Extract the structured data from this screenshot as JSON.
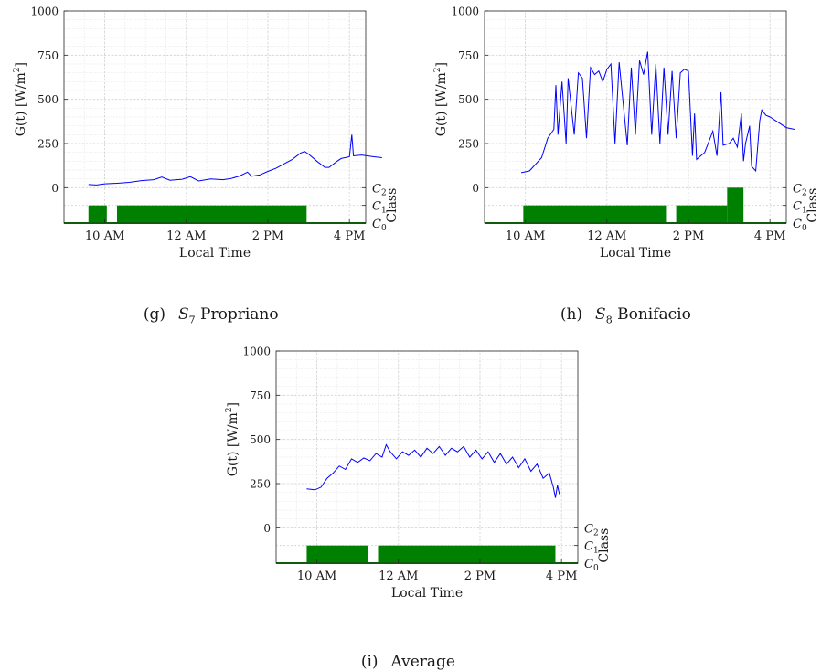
{
  "charts": [
    {
      "id": "g",
      "caption": {
        "label": "(g)",
        "station": "S",
        "station_sub": "7",
        "name": "Propriano"
      },
      "chart_data": {
        "type": "line",
        "xlabel": "Local Time",
        "ylabel": "G(t) [W/m",
        "ylabel_sup": "2",
        "ylabel_end": "]",
        "right_label": "Class",
        "xticks": [
          {
            "value": 10,
            "label": "10 AM"
          },
          {
            "value": 12,
            "label": "12 AM"
          },
          {
            "value": 14,
            "label": "2 PM"
          },
          {
            "value": 16,
            "label": "4 PM"
          }
        ],
        "yticks": [
          0,
          250,
          500,
          750,
          1000
        ],
        "class_ticks": [
          "C0",
          "C1",
          "C2"
        ],
        "xlim": [
          9,
          16.4
        ],
        "ylim": [
          -200,
          1000
        ],
        "series": [
          {
            "color": "#0000ff",
            "points": [
              [
                9.6,
                18
              ],
              [
                9.8,
                15
              ],
              [
                10.0,
                22
              ],
              [
                10.3,
                25
              ],
              [
                10.6,
                30
              ],
              [
                10.9,
                40
              ],
              [
                11.2,
                45
              ],
              [
                11.4,
                60
              ],
              [
                11.6,
                42
              ],
              [
                11.9,
                48
              ],
              [
                12.1,
                62
              ],
              [
                12.3,
                38
              ],
              [
                12.6,
                50
              ],
              [
                12.9,
                45
              ],
              [
                13.1,
                52
              ],
              [
                13.3,
                66
              ],
              [
                13.5,
                88
              ],
              [
                13.6,
                65
              ],
              [
                13.8,
                72
              ],
              [
                14.0,
                92
              ],
              [
                14.2,
                110
              ],
              [
                14.4,
                135
              ],
              [
                14.6,
                160
              ],
              [
                14.8,
                195
              ],
              [
                14.9,
                205
              ],
              [
                15.0,
                190
              ],
              [
                15.2,
                150
              ],
              [
                15.4,
                115
              ],
              [
                15.5,
                115
              ],
              [
                15.7,
                150
              ],
              [
                15.8,
                165
              ],
              [
                16.0,
                175
              ],
              [
                16.06,
                300
              ],
              [
                16.1,
                180
              ],
              [
                16.3,
                185
              ],
              [
                16.6,
                175
              ],
              [
                16.8,
                170
              ]
            ]
          }
        ],
        "class_segments": [
          {
            "start": 9.6,
            "end": 10.05,
            "class": 1
          },
          {
            "start": 10.3,
            "end": 14.95,
            "class": 1
          }
        ]
      }
    },
    {
      "id": "h",
      "caption": {
        "label": "(h)",
        "station": "S",
        "station_sub": "8",
        "name": "Bonifacio"
      },
      "chart_data": {
        "type": "line",
        "xlabel": "Local Time",
        "ylabel": "G(t) [W/m",
        "ylabel_sup": "2",
        "ylabel_end": "]",
        "right_label": "Class",
        "xticks": [
          {
            "value": 10,
            "label": "10 AM"
          },
          {
            "value": 12,
            "label": "12 AM"
          },
          {
            "value": 14,
            "label": "2 PM"
          },
          {
            "value": 16,
            "label": "4 PM"
          }
        ],
        "yticks": [
          0,
          250,
          500,
          750,
          1000
        ],
        "class_ticks": [
          "C0",
          "C1",
          "C2"
        ],
        "xlim": [
          9,
          16.4
        ],
        "ylim": [
          -200,
          1000
        ],
        "series": [
          {
            "color": "#0000ff",
            "points": [
              [
                9.9,
                85
              ],
              [
                10.1,
                95
              ],
              [
                10.4,
                170
              ],
              [
                10.55,
                280
              ],
              [
                10.7,
                330
              ],
              [
                10.75,
                580
              ],
              [
                10.8,
                300
              ],
              [
                10.9,
                600
              ],
              [
                11.0,
                250
              ],
              [
                11.05,
                620
              ],
              [
                11.2,
                300
              ],
              [
                11.3,
                650
              ],
              [
                11.4,
                620
              ],
              [
                11.5,
                280
              ],
              [
                11.6,
                680
              ],
              [
                11.7,
                640
              ],
              [
                11.8,
                660
              ],
              [
                11.9,
                600
              ],
              [
                12.0,
                670
              ],
              [
                12.1,
                700
              ],
              [
                12.2,
                250
              ],
              [
                12.3,
                710
              ],
              [
                12.5,
                240
              ],
              [
                12.6,
                680
              ],
              [
                12.7,
                300
              ],
              [
                12.8,
                720
              ],
              [
                12.9,
                640
              ],
              [
                13.0,
                770
              ],
              [
                13.1,
                300
              ],
              [
                13.2,
                700
              ],
              [
                13.3,
                250
              ],
              [
                13.4,
                680
              ],
              [
                13.5,
                300
              ],
              [
                13.6,
                660
              ],
              [
                13.7,
                280
              ],
              [
                13.8,
                650
              ],
              [
                13.9,
                670
              ],
              [
                14.0,
                660
              ],
              [
                14.1,
                180
              ],
              [
                14.15,
                420
              ],
              [
                14.2,
                160
              ],
              [
                14.4,
                200
              ],
              [
                14.6,
                320
              ],
              [
                14.7,
                180
              ],
              [
                14.8,
                540
              ],
              [
                14.85,
                240
              ],
              [
                15.0,
                250
              ],
              [
                15.1,
                280
              ],
              [
                15.2,
                230
              ],
              [
                15.3,
                420
              ],
              [
                15.35,
                150
              ],
              [
                15.4,
                250
              ],
              [
                15.5,
                350
              ],
              [
                15.55,
                120
              ],
              [
                15.65,
                95
              ],
              [
                15.75,
                380
              ],
              [
                15.8,
                440
              ],
              [
                15.9,
                410
              ],
              [
                16.0,
                400
              ],
              [
                16.2,
                370
              ],
              [
                16.4,
                340
              ],
              [
                16.6,
                330
              ]
            ]
          }
        ],
        "class_segments": [
          {
            "start": 9.95,
            "end": 13.45,
            "class": 1
          },
          {
            "start": 13.7,
            "end": 14.95,
            "class": 1
          },
          {
            "start": 14.95,
            "end": 15.35,
            "class": 2
          }
        ]
      }
    },
    {
      "id": "i",
      "caption": {
        "label": "(i)",
        "station": "",
        "station_sub": "",
        "name": "Average"
      },
      "chart_data": {
        "type": "line",
        "xlabel": "Local Time",
        "ylabel": "G(t) [W/m",
        "ylabel_sup": "2",
        "ylabel_end": "]",
        "right_label": "Class",
        "xticks": [
          {
            "value": 10,
            "label": "10 AM"
          },
          {
            "value": 12,
            "label": "12 AM"
          },
          {
            "value": 14,
            "label": "2 PM"
          },
          {
            "value": 16,
            "label": "4 PM"
          }
        ],
        "yticks": [
          0,
          250,
          500,
          750,
          1000
        ],
        "class_ticks": [
          "C0",
          "C1",
          "C2"
        ],
        "xlim": [
          9,
          16.4
        ],
        "ylim": [
          -200,
          1000
        ],
        "series": [
          {
            "color": "#0000ff",
            "points": [
              [
                9.75,
                220
              ],
              [
                9.95,
                215
              ],
              [
                10.1,
                230
              ],
              [
                10.25,
                280
              ],
              [
                10.4,
                310
              ],
              [
                10.55,
                350
              ],
              [
                10.7,
                330
              ],
              [
                10.85,
                390
              ],
              [
                11.0,
                370
              ],
              [
                11.15,
                395
              ],
              [
                11.3,
                380
              ],
              [
                11.45,
                420
              ],
              [
                11.6,
                400
              ],
              [
                11.7,
                470
              ],
              [
                11.8,
                430
              ],
              [
                11.95,
                390
              ],
              [
                12.1,
                430
              ],
              [
                12.25,
                410
              ],
              [
                12.4,
                440
              ],
              [
                12.55,
                400
              ],
              [
                12.7,
                450
              ],
              [
                12.85,
                420
              ],
              [
                13.0,
                460
              ],
              [
                13.15,
                410
              ],
              [
                13.3,
                450
              ],
              [
                13.45,
                430
              ],
              [
                13.6,
                460
              ],
              [
                13.75,
                400
              ],
              [
                13.9,
                440
              ],
              [
                14.05,
                390
              ],
              [
                14.2,
                430
              ],
              [
                14.35,
                370
              ],
              [
                14.5,
                420
              ],
              [
                14.65,
                360
              ],
              [
                14.8,
                400
              ],
              [
                14.95,
                340
              ],
              [
                15.1,
                390
              ],
              [
                15.25,
                320
              ],
              [
                15.4,
                360
              ],
              [
                15.55,
                280
              ],
              [
                15.7,
                310
              ],
              [
                15.8,
                230
              ],
              [
                15.85,
                170
              ],
              [
                15.9,
                240
              ],
              [
                15.95,
                190
              ]
            ]
          }
        ],
        "class_segments": [
          {
            "start": 9.75,
            "end": 11.25,
            "class": 1
          },
          {
            "start": 11.5,
            "end": 15.85,
            "class": 1
          }
        ]
      }
    }
  ]
}
